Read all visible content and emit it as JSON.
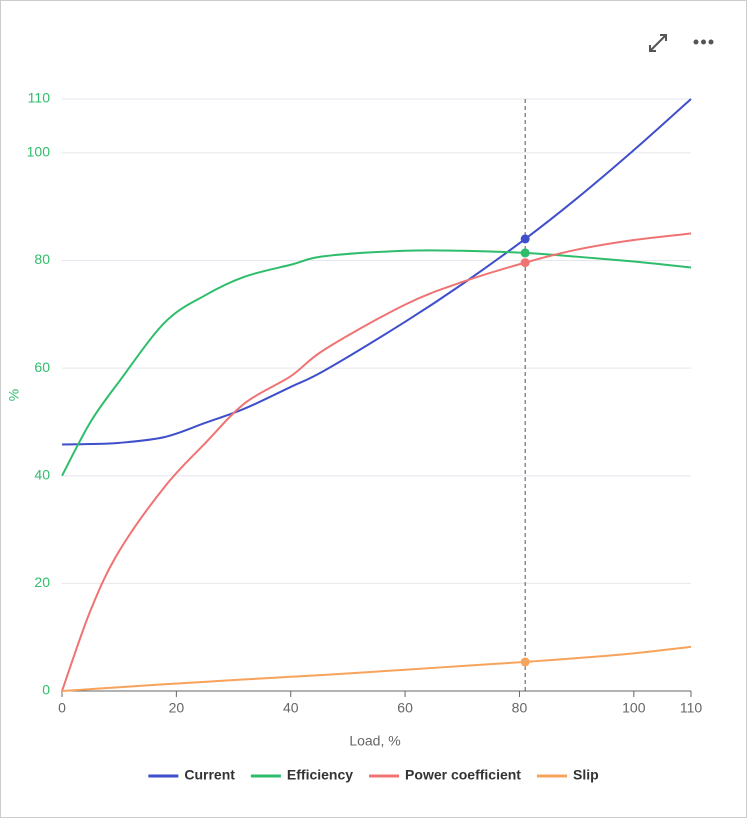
{
  "chart_data": {
    "type": "line",
    "x_label": "Load, %",
    "y_label": "%",
    "x": [
      0,
      5,
      10,
      18,
      25,
      32,
      40,
      46,
      60,
      70,
      81,
      90,
      100,
      110
    ],
    "series": [
      {
        "name": "Current",
        "color": "#3f4fcb",
        "values": [
          45.8,
          45.9,
          46.1,
          47.2,
          49.8,
          52.5,
          56.5,
          59.6,
          68.6,
          75.6,
          84,
          91.5,
          100.5,
          110
        ]
      },
      {
        "name": "Efficiency",
        "color": "#2ebd6b",
        "values": [
          40,
          50,
          57.5,
          68.5,
          73.5,
          77,
          79.2,
          80.8,
          81.8,
          81.8,
          81.4,
          80.7,
          79.8,
          78.7
        ]
      },
      {
        "name": "Power coefficient",
        "color": "#f07373",
        "values": [
          0,
          15,
          26,
          38,
          46,
          53.5,
          58.5,
          63.5,
          71.8,
          76,
          79.6,
          82,
          83.8,
          85
        ]
      },
      {
        "name": "Slip",
        "color": "#f7a35c",
        "values": [
          0,
          0.35,
          0.7,
          1.25,
          1.7,
          2.15,
          2.65,
          3.0,
          3.95,
          4.65,
          5.4,
          6.1,
          7.0,
          8.2
        ]
      }
    ],
    "xlim": [
      0,
      110
    ],
    "xticks": [
      0,
      20,
      40,
      60,
      80,
      100,
      110
    ],
    "ylim": [
      0,
      110
    ],
    "yticks": [
      0,
      20,
      40,
      60,
      80,
      100,
      110
    ],
    "grid": true,
    "crosshair_x": 81,
    "legend": "bottom"
  }
}
